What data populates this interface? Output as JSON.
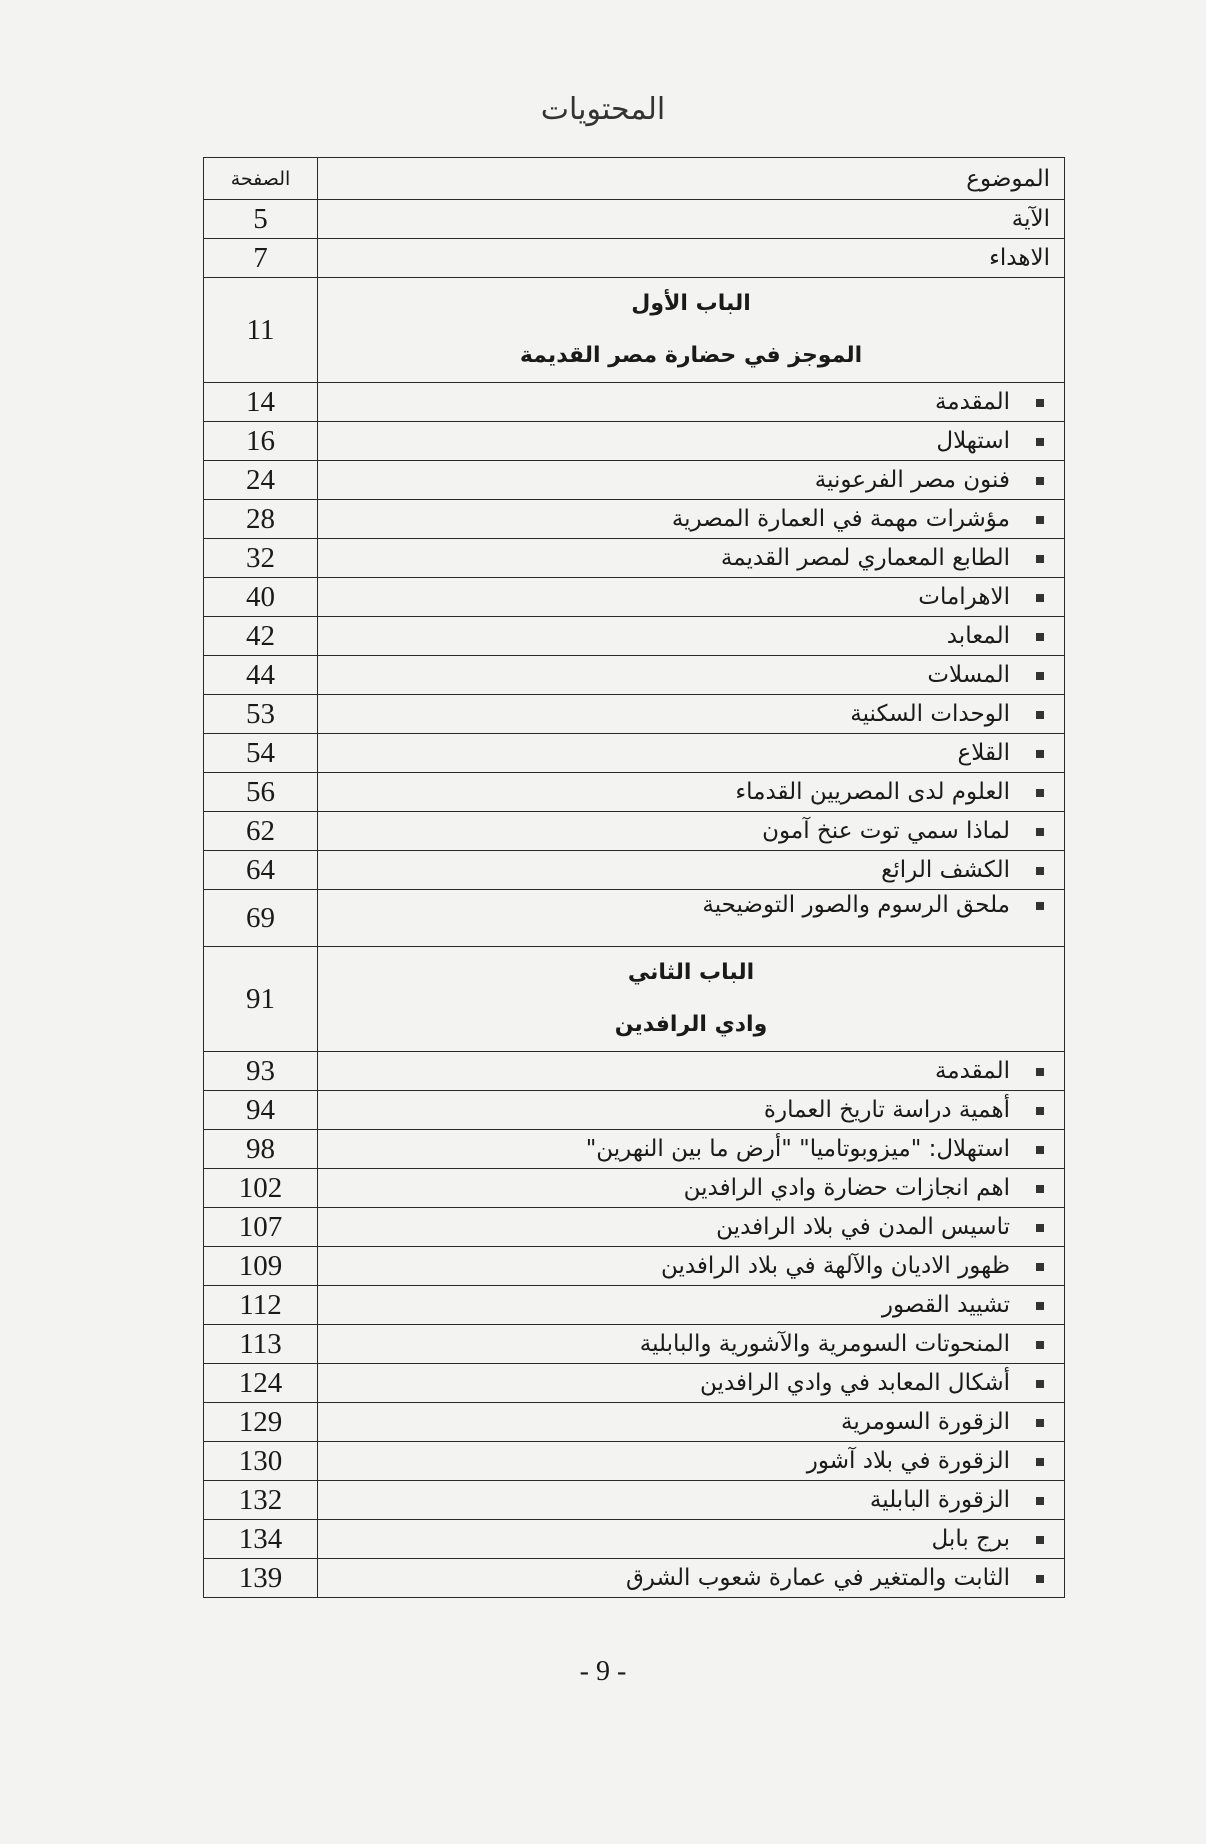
{
  "title": "المحتويات",
  "header": {
    "subject": "الموضوع",
    "page": "الصفحة"
  },
  "intro": [
    {
      "label": "الآية",
      "page": "5"
    },
    {
      "label": "الاهداء",
      "page": "7"
    }
  ],
  "chapter1": {
    "name": "الباب الأول",
    "subtitle": "الموجز في حضارة مصر القديمة",
    "page": "11",
    "items": [
      {
        "label": "المقدمة",
        "page": "14"
      },
      {
        "label": "استهلال",
        "page": "16"
      },
      {
        "label": "فنون مصر الفرعونية",
        "page": "24"
      },
      {
        "label": "مؤشرات مهمة في العمارة المصرية",
        "page": "28"
      },
      {
        "label": "الطابع المعماري لمصر القديمة",
        "page": "32"
      },
      {
        "label": "الاهرامات",
        "page": "40"
      },
      {
        "label": "المعابد",
        "page": "42"
      },
      {
        "label": "المسلات",
        "page": "44"
      },
      {
        "label": "الوحدات السكنية",
        "page": "53"
      },
      {
        "label": "القلاع",
        "page": "54"
      },
      {
        "label": "العلوم لدى المصريين القدماء",
        "page": "56"
      },
      {
        "label": "لماذا سمي توت عنخ آمون",
        "page": "62"
      },
      {
        "label": "الكشف الرائع",
        "page": "64"
      },
      {
        "label": "ملحق الرسوم والصور التوضيحية",
        "page": "69"
      }
    ]
  },
  "chapter2": {
    "name": "الباب الثاني",
    "subtitle": "وادي الرافدين",
    "page": "91",
    "items": [
      {
        "label": "المقدمة",
        "page": "93"
      },
      {
        "label": "أهمية دراسة تاريخ العمارة",
        "page": "94"
      },
      {
        "label": "استهلال: \"ميزوبوتاميا\" \"أرض ما بين النهرين\"",
        "page": "98"
      },
      {
        "label": "اهم انجازات حضارة وادي الرافدين",
        "page": "102"
      },
      {
        "label": "تاسيس المدن في بلاد الرافدين",
        "page": "107"
      },
      {
        "label": "ظهور الاديان والآلهة في بلاد الرافدين",
        "page": "109"
      },
      {
        "label": "تشييد القصور",
        "page": "112"
      },
      {
        "label": "المنحوتات السومرية والآشورية والبابلية",
        "page": "113"
      },
      {
        "label": "أشكال المعابد في وادي الرافدين",
        "page": "124"
      },
      {
        "label": "الزقورة السومرية",
        "page": "129"
      },
      {
        "label": "الزقورة في بلاد آشور",
        "page": "130"
      },
      {
        "label": "الزقورة البابلية",
        "page": "132"
      },
      {
        "label": "برج بابل",
        "page": "134"
      },
      {
        "label": "الثابت والمتغير في عمارة شعوب الشرق",
        "page": "139"
      }
    ]
  },
  "page_number": "- 9 -"
}
